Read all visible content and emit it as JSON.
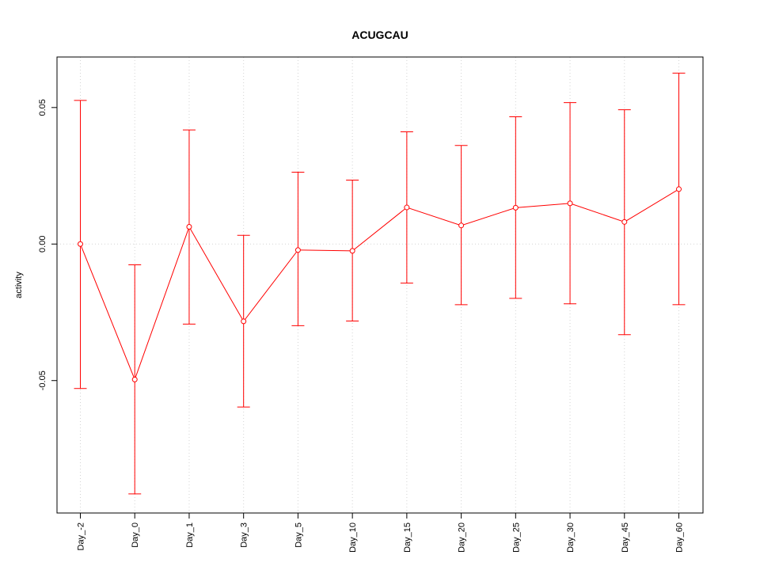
{
  "chart_data": {
    "type": "line",
    "title": "ACUGCAU",
    "xlabel": "",
    "ylabel": "activity",
    "categories": [
      "Day_-2",
      "Day_0",
      "Day_1",
      "Day_3",
      "Day_5",
      "Day_10",
      "Day_15",
      "Day_20",
      "Day_25",
      "Day_30",
      "Day_45",
      "Day_60"
    ],
    "series": [
      {
        "values": [
          0.0,
          -0.0496,
          0.0063,
          -0.0283,
          -0.0022,
          -0.0025,
          0.0134,
          0.0068,
          0.0133,
          0.0149,
          0.0081,
          0.0201
        ],
        "upper": [
          0.0526,
          -0.0076,
          0.0418,
          0.0032,
          0.0263,
          0.0234,
          0.0411,
          0.0361,
          0.0466,
          0.0518,
          0.0492,
          0.0626
        ],
        "lower": [
          -0.0529,
          -0.0915,
          -0.0293,
          -0.0597,
          -0.0299,
          -0.0282,
          -0.0143,
          -0.0222,
          -0.0199,
          -0.0219,
          -0.0332,
          -0.0222
        ],
        "color": "#ff0000"
      }
    ],
    "ylim": [
      -0.0985,
      0.0685
    ],
    "yticks": [
      {
        "value": -0.05,
        "label": "-0.05"
      },
      {
        "value": 0.0,
        "label": "0.00"
      },
      {
        "value": 0.05,
        "label": "0.05"
      }
    ],
    "grid": true,
    "grid_color": "#d3d3d3",
    "legend": "none"
  }
}
